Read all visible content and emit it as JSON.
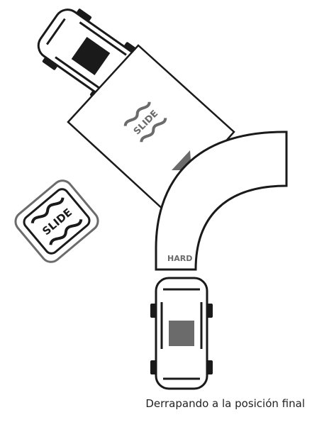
{
  "diagram": {
    "slide_tile_text": "SLIDE",
    "slide_badge_text": "SLIDE",
    "curve_label": "HARD",
    "caption": "Derrapando a la posición final"
  },
  "colors": {
    "ink": "#1a1a1a",
    "grey_mark": "#6b6b6b",
    "paper": "#ffffff"
  }
}
